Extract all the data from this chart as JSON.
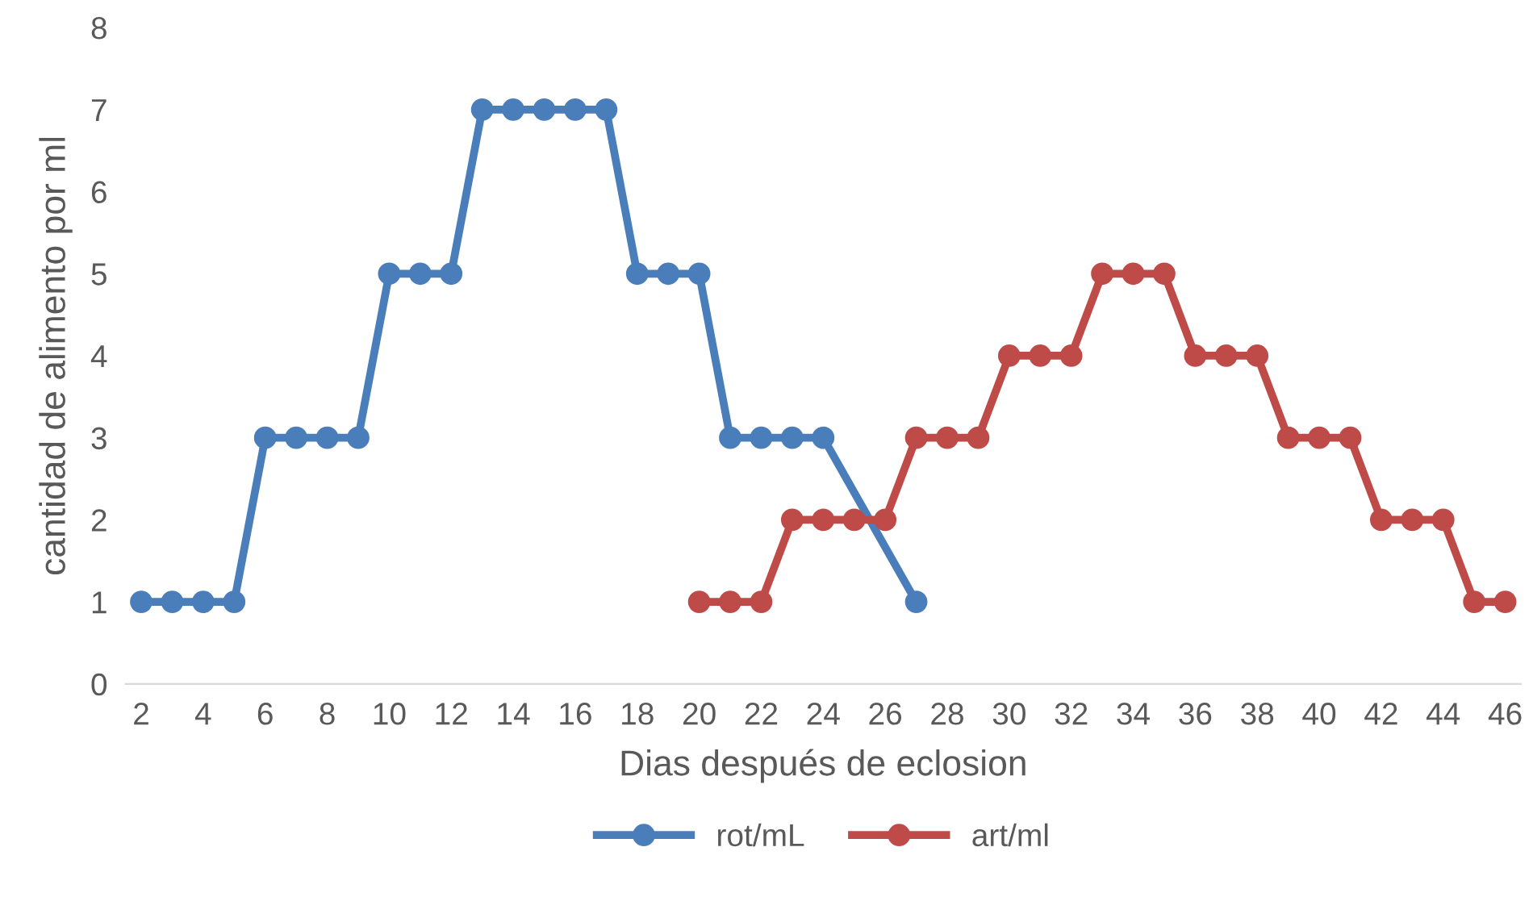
{
  "chart_data": {
    "type": "line",
    "xlabel": "Dias después de eclosion",
    "ylabel": "cantidad de alimento por ml",
    "series": [
      {
        "name": "rot/mL",
        "color": "#4a7ebb",
        "x": [
          2,
          3,
          4,
          5,
          6,
          7,
          8,
          9,
          10,
          11,
          12,
          13,
          14,
          15,
          16,
          17,
          18,
          19,
          20,
          21,
          22,
          23,
          24,
          27
        ],
        "values": [
          1,
          1,
          1,
          1,
          3,
          3,
          3,
          3,
          5,
          5,
          5,
          7,
          7,
          7,
          7,
          7,
          5,
          5,
          5,
          3,
          3,
          3,
          3,
          1
        ]
      },
      {
        "name": "art/ml",
        "color": "#be4b48",
        "x": [
          20,
          21,
          22,
          23,
          24,
          25,
          26,
          27,
          28,
          29,
          30,
          31,
          32,
          33,
          34,
          35,
          36,
          37,
          38,
          39,
          40,
          41,
          42,
          43,
          44,
          45,
          46
        ],
        "values": [
          1,
          1,
          1,
          2,
          2,
          2,
          2,
          3,
          3,
          3,
          4,
          4,
          4,
          5,
          5,
          5,
          4,
          4,
          4,
          3,
          3,
          3,
          2,
          2,
          2,
          1,
          1
        ]
      }
    ],
    "xlim": [
      1.5,
      46.5
    ],
    "xticks": [
      2,
      4,
      6,
      8,
      10,
      12,
      14,
      16,
      18,
      20,
      22,
      24,
      26,
      28,
      30,
      32,
      34,
      36,
      38,
      40,
      42,
      44,
      46
    ],
    "ylim": [
      0,
      8
    ],
    "yticks": [
      0,
      1,
      2,
      3,
      4,
      5,
      6,
      7,
      8
    ],
    "grid": false,
    "legend": "bottom",
    "marker": "circle",
    "line_style": "solid"
  }
}
